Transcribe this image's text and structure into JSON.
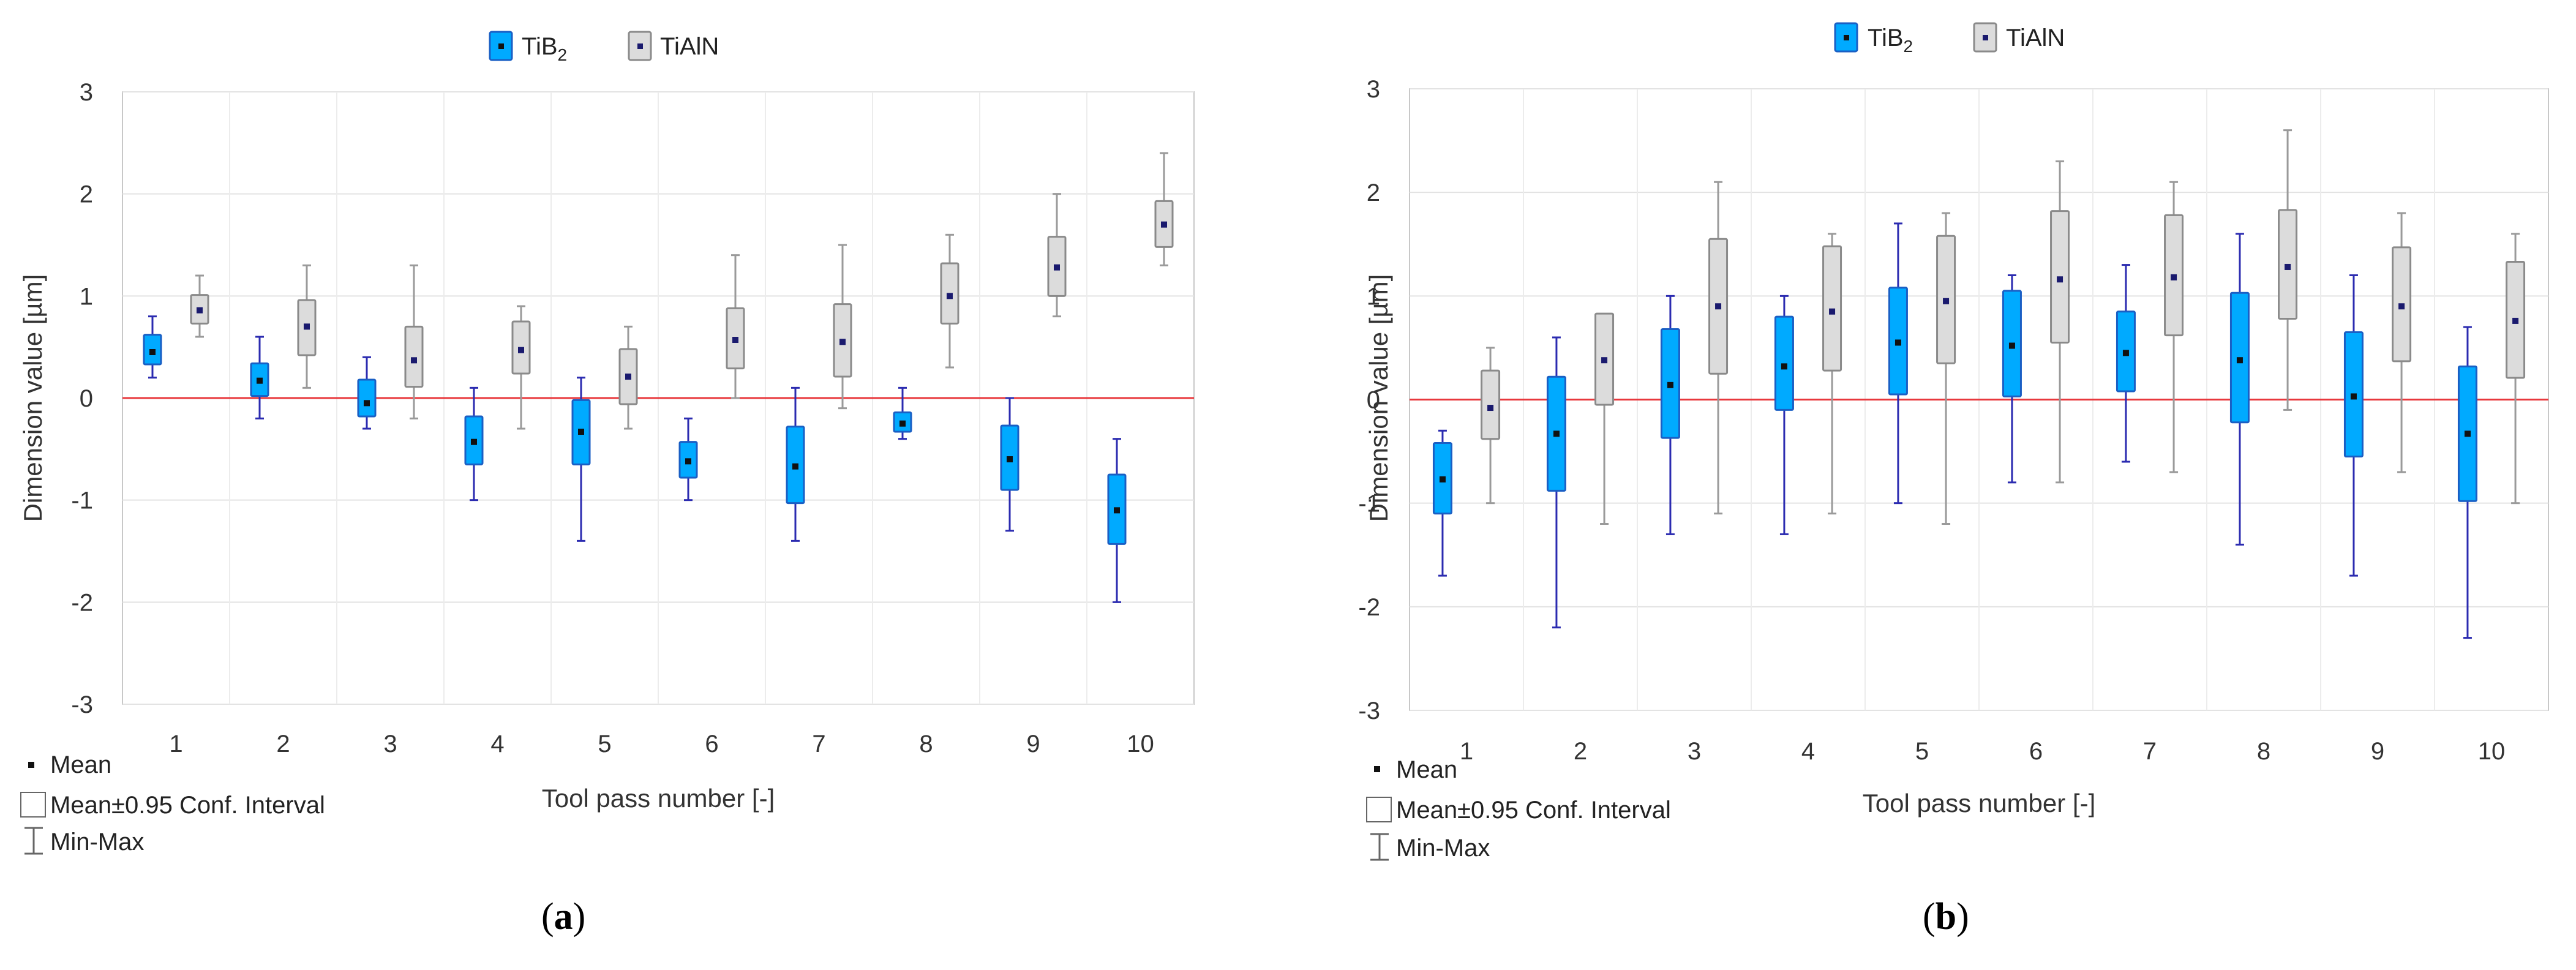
{
  "chart_data": [
    {
      "type": "box",
      "panel": "a",
      "caption_prefix": "(",
      "caption_letter": "a",
      "caption_suffix": ")",
      "ylabel": "Dimension value [µm]",
      "xlabel": "Tool pass number [-]",
      "ylim": [
        -3,
        3
      ],
      "yticks": [
        "-3",
        "-2",
        "-1",
        "0",
        "1",
        "2",
        "3"
      ],
      "categories": [
        "1",
        "2",
        "3",
        "4",
        "5",
        "6",
        "7",
        "8",
        "9",
        "10"
      ],
      "reference_line": 0,
      "legend": [
        {
          "name": "TiB",
          "sub": "2",
          "series": "TiB2"
        },
        {
          "name": "TiAlN",
          "sub": "",
          "series": "TiAlN"
        }
      ],
      "key": {
        "mean": "Mean",
        "ci": "Mean±0.95 Conf. Interval",
        "minmax": "Min-Max"
      },
      "series": [
        {
          "name": "TiB2",
          "fill": "#00aaff",
          "stroke": "#1a5fc4",
          "whisker": "#2b2bb0",
          "mean_color": "#111111",
          "mean": [
            0.45,
            0.17,
            -0.05,
            -0.43,
            -0.33,
            -0.62,
            -0.67,
            -0.25,
            -0.6,
            -1.1
          ],
          "ci_lo": [
            0.33,
            0.02,
            -0.18,
            -0.65,
            -0.65,
            -0.78,
            -1.03,
            -0.33,
            -0.9,
            -1.43
          ],
          "ci_hi": [
            0.62,
            0.34,
            0.18,
            -0.18,
            -0.02,
            -0.43,
            -0.28,
            -0.14,
            -0.27,
            -0.75
          ],
          "min": [
            0.2,
            -0.2,
            -0.3,
            -1.0,
            -1.4,
            -1.0,
            -1.4,
            -0.4,
            -1.3,
            -2.0
          ],
          "max": [
            0.8,
            0.6,
            0.4,
            0.1,
            0.2,
            -0.2,
            0.1,
            0.1,
            0.0,
            -0.4
          ]
        },
        {
          "name": "TiAlN",
          "fill": "#dcdcdc",
          "stroke": "#8a8a8a",
          "whisker": "#9a9a9a",
          "mean_color": "#1a1a6e",
          "mean": [
            0.86,
            0.7,
            0.37,
            0.47,
            0.21,
            0.57,
            0.55,
            1.0,
            1.28,
            1.7
          ],
          "ci_lo": [
            0.73,
            0.42,
            0.11,
            0.24,
            -0.06,
            0.29,
            0.21,
            0.73,
            1.0,
            1.48
          ],
          "ci_hi": [
            1.01,
            0.96,
            0.7,
            0.75,
            0.48,
            0.88,
            0.92,
            1.32,
            1.58,
            1.93
          ],
          "min": [
            0.6,
            0.1,
            -0.2,
            -0.3,
            -0.3,
            0.0,
            -0.1,
            0.3,
            0.8,
            1.3
          ],
          "max": [
            1.2,
            1.3,
            1.3,
            0.9,
            0.7,
            1.4,
            1.5,
            1.6,
            2.0,
            2.4
          ]
        }
      ]
    },
    {
      "type": "box",
      "panel": "b",
      "caption_prefix": "(",
      "caption_letter": "b",
      "caption_suffix": ")",
      "ylabel": "Dimension value [µm]",
      "xlabel": "Tool pass number [-]",
      "ylim": [
        -3,
        3
      ],
      "yticks": [
        "-3",
        "-2",
        "-1",
        "0",
        "1",
        "2",
        "3"
      ],
      "categories": [
        "1",
        "2",
        "3",
        "4",
        "5",
        "6",
        "7",
        "8",
        "9",
        "10"
      ],
      "reference_line": 0,
      "legend": [
        {
          "name": "TiB",
          "sub": "2",
          "series": "TiB2"
        },
        {
          "name": "TiAlN",
          "sub": "",
          "series": "TiAlN"
        }
      ],
      "key": {
        "mean": "Mean",
        "ci": "Mean±0.95 Conf. Interval",
        "minmax": "Min-Max"
      },
      "series": [
        {
          "name": "TiB2",
          "fill": "#00aaff",
          "stroke": "#1a5fc4",
          "whisker": "#2b2bb0",
          "mean_color": "#111111",
          "mean": [
            -0.77,
            -0.33,
            0.14,
            0.32,
            0.55,
            0.52,
            0.45,
            0.38,
            0.03,
            -0.33
          ],
          "ci_lo": [
            -1.1,
            -0.88,
            -0.37,
            -0.1,
            0.05,
            0.03,
            0.08,
            -0.22,
            -0.55,
            -0.98
          ],
          "ci_hi": [
            -0.42,
            0.22,
            0.68,
            0.8,
            1.08,
            1.05,
            0.85,
            1.03,
            0.65,
            0.32
          ],
          "min": [
            -1.7,
            -2.2,
            -1.3,
            -1.3,
            -1.0,
            -0.8,
            -0.6,
            -1.4,
            -1.7,
            -2.3
          ],
          "max": [
            -0.3,
            0.6,
            1.0,
            1.0,
            1.7,
            1.2,
            1.3,
            1.6,
            1.2,
            0.7
          ]
        },
        {
          "name": "TiAlN",
          "fill": "#dcdcdc",
          "stroke": "#8a8a8a",
          "whisker": "#9a9a9a",
          "mean_color": "#1a1a6e",
          "mean": [
            -0.08,
            0.38,
            0.9,
            0.85,
            0.95,
            1.16,
            1.18,
            1.28,
            0.9,
            0.76
          ],
          "ci_lo": [
            -0.38,
            -0.05,
            0.25,
            0.28,
            0.35,
            0.55,
            0.62,
            0.78,
            0.37,
            0.21
          ],
          "ci_hi": [
            0.28,
            0.83,
            1.55,
            1.48,
            1.58,
            1.82,
            1.78,
            1.83,
            1.47,
            1.33
          ],
          "min": [
            -1.0,
            -1.2,
            -1.1,
            -1.1,
            -1.2,
            -0.8,
            -0.7,
            -0.1,
            -0.7,
            -1.0
          ],
          "max": [
            0.5,
            0.8,
            2.1,
            1.6,
            1.8,
            2.3,
            2.1,
            2.6,
            1.8,
            1.6
          ]
        }
      ]
    }
  ]
}
